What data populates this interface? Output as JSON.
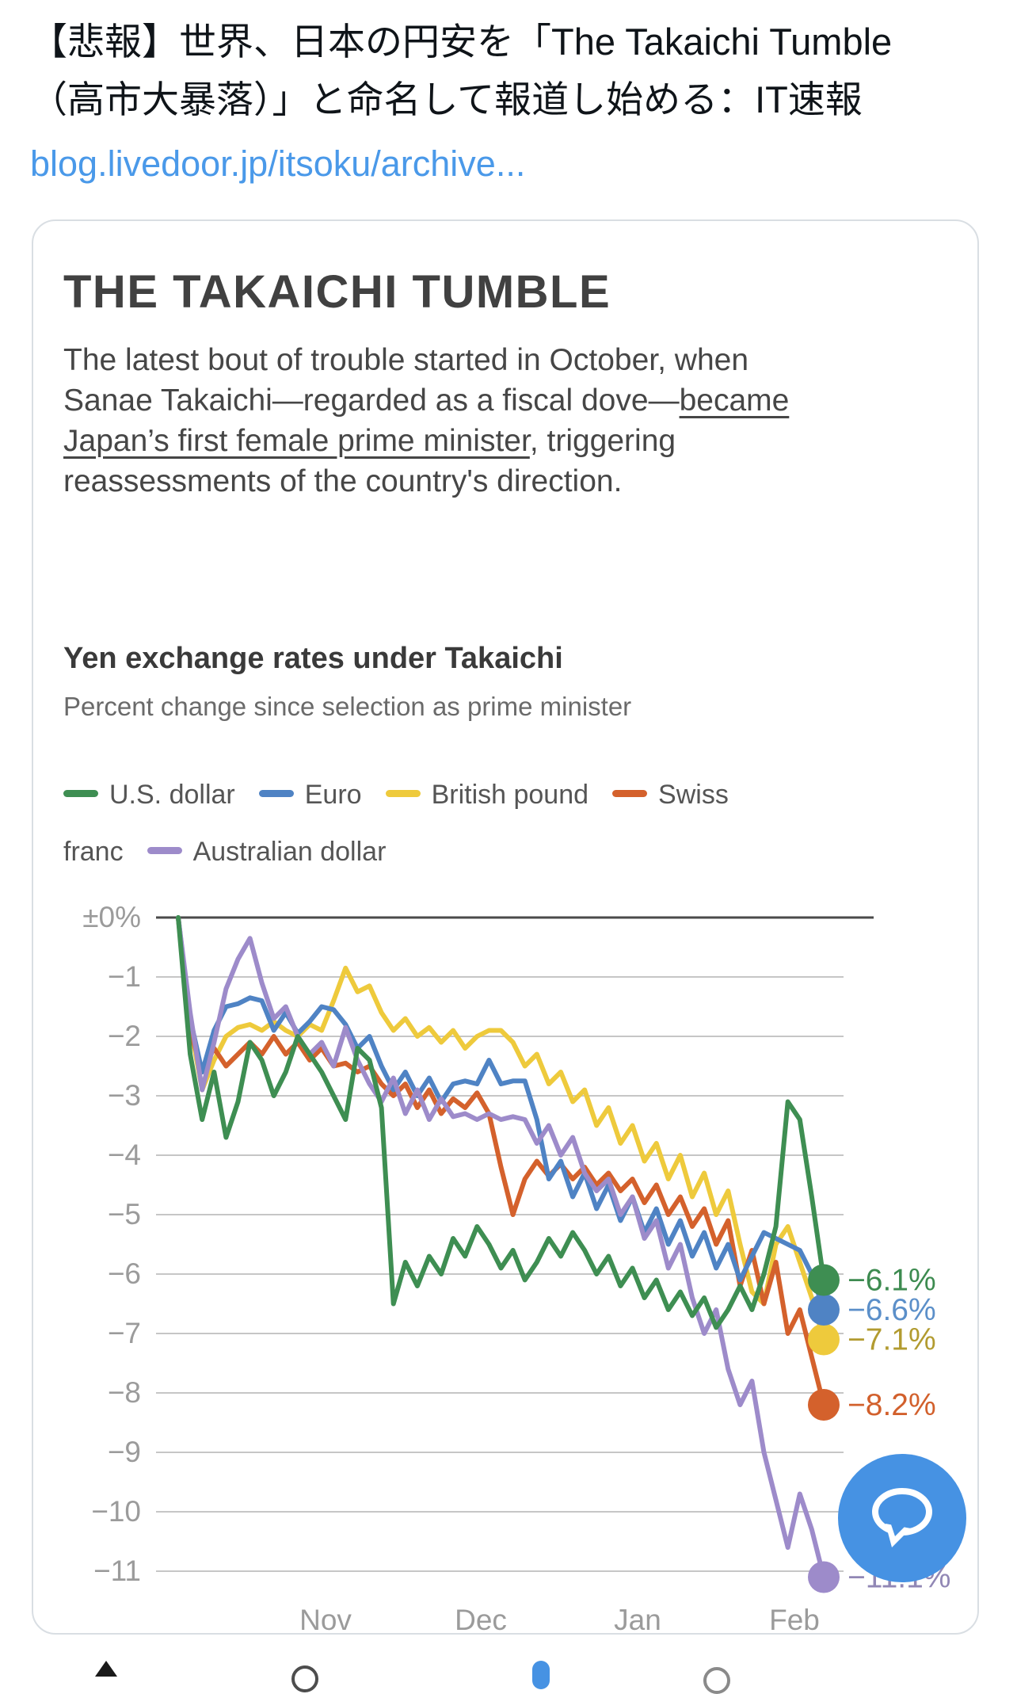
{
  "tweet": {
    "text_lines": [
      "【悲報】世界、日本の円安を「The Takaichi Tumble",
      "（高市大暴落）」と命名して報道し始める：IT速報"
    ],
    "link_text": "blog.livedoor.jp/itsoku/archive..."
  },
  "article": {
    "title": "THE TAKAICHI TUMBLE",
    "paragraph_lines": [
      [
        {
          "t": "The latest bout of trouble started in October, when"
        }
      ],
      [
        {
          "t": "Sanae Takaichi—regarded as a fiscal dove—"
        },
        {
          "t": "became",
          "u": true
        }
      ],
      [
        {
          "t": "Japan’s first female prime minister",
          "u": true
        },
        {
          "t": ", triggering"
        }
      ],
      [
        {
          "t": "reassessments of the country's direction."
        }
      ]
    ]
  },
  "chart_data": {
    "type": "line",
    "title": "Yen exchange rates under Takaichi",
    "subtitle": "Percent change since selection as prime minister",
    "unit": "percent change",
    "ylim": [
      -11.5,
      0.3
    ],
    "grid": true,
    "legend_position": "top",
    "x_axis_labels": [
      "Nov",
      "Dec",
      "Jan",
      "Feb"
    ],
    "y_ticks": [
      {
        "label": "±0%",
        "value": 0
      },
      {
        "label": "−1",
        "value": -1
      },
      {
        "label": "−2",
        "value": -2
      },
      {
        "label": "−3",
        "value": -3
      },
      {
        "label": "−4",
        "value": -4
      },
      {
        "label": "−5",
        "value": -5
      },
      {
        "label": "−6",
        "value": -6
      },
      {
        "label": "−7",
        "value": -7
      },
      {
        "label": "−8",
        "value": -8
      },
      {
        "label": "−9",
        "value": -9
      },
      {
        "label": "−10",
        "value": -10
      },
      {
        "label": "−11",
        "value": -11
      }
    ],
    "series": [
      {
        "name": "U.S. dollar",
        "color": "#3e8e52",
        "label_color": "#3d8b50",
        "end_label": "−6.1%",
        "final_value": -6.1,
        "values": [
          0,
          -2.3,
          -3.4,
          -2.6,
          -3.7,
          -3.1,
          -2.1,
          -2.4,
          -3.0,
          -2.6,
          -2.0,
          -2.3,
          -2.6,
          -3.0,
          -3.4,
          -2.2,
          -2.4,
          -3.2,
          -6.5,
          -5.8,
          -6.2,
          -5.7,
          -6.0,
          -5.4,
          -5.7,
          -5.2,
          -5.5,
          -5.9,
          -5.6,
          -6.1,
          -5.8,
          -5.4,
          -5.7,
          -5.3,
          -5.6,
          -6.0,
          -5.7,
          -6.2,
          -5.9,
          -6.4,
          -6.1,
          -6.6,
          -6.3,
          -6.7,
          -6.4,
          -6.9,
          -6.6,
          -6.2,
          -6.6,
          -6.0,
          -5.2,
          -3.1,
          -3.4,
          -4.7,
          -6.1
        ]
      },
      {
        "name": "Euro",
        "color": "#4f83c4",
        "label_color": "#5b8fc9",
        "end_label": "−6.6%",
        "final_value": -6.6,
        "values": [
          0,
          -1.7,
          -2.6,
          -1.9,
          -1.5,
          -1.45,
          -1.35,
          -1.4,
          -1.9,
          -1.6,
          -1.95,
          -1.75,
          -1.5,
          -1.55,
          -1.8,
          -2.2,
          -2.0,
          -2.5,
          -2.9,
          -2.6,
          -3.0,
          -2.7,
          -3.1,
          -2.8,
          -2.75,
          -2.8,
          -2.4,
          -2.8,
          -2.75,
          -2.75,
          -3.4,
          -4.4,
          -4.1,
          -4.7,
          -4.3,
          -4.9,
          -4.5,
          -5.1,
          -4.7,
          -5.3,
          -4.9,
          -5.5,
          -5.1,
          -5.7,
          -5.3,
          -5.9,
          -5.5,
          -6.1,
          -5.7,
          -5.3,
          -5.4,
          -5.5,
          -5.6,
          -6.0,
          -6.6
        ]
      },
      {
        "name": "British pound",
        "color": "#eeca3c",
        "label_color": "#b29b30",
        "end_label": "−7.1%",
        "final_value": -7.1,
        "values": [
          0,
          -1.8,
          -2.9,
          -2.4,
          -2.0,
          -1.85,
          -1.8,
          -1.9,
          -1.75,
          -1.9,
          -2.0,
          -1.8,
          -1.9,
          -1.4,
          -0.85,
          -1.25,
          -1.15,
          -1.6,
          -1.9,
          -1.7,
          -2.0,
          -1.85,
          -2.1,
          -1.9,
          -2.2,
          -2.0,
          -1.9,
          -1.9,
          -2.1,
          -2.5,
          -2.3,
          -2.8,
          -2.6,
          -3.1,
          -2.9,
          -3.5,
          -3.2,
          -3.8,
          -3.5,
          -4.1,
          -3.8,
          -4.4,
          -4.0,
          -4.7,
          -4.3,
          -5.0,
          -4.6,
          -5.5,
          -6.3,
          -6.5,
          -5.5,
          -5.2,
          -5.8,
          -6.4,
          -7.1
        ]
      },
      {
        "name": "Swiss franc",
        "color": "#d4612c",
        "label_color": "#d2602c",
        "end_label": "−8.2%",
        "final_value": -8.2,
        "values": [
          0,
          -1.9,
          -2.6,
          -2.2,
          -2.5,
          -2.3,
          -2.1,
          -2.3,
          -2.0,
          -2.3,
          -2.1,
          -2.4,
          -2.2,
          -2.5,
          -2.45,
          -2.6,
          -2.5,
          -2.8,
          -3.0,
          -2.8,
          -3.2,
          -2.9,
          -3.3,
          -3.05,
          -3.2,
          -2.95,
          -3.3,
          -4.2,
          -5.0,
          -4.4,
          -4.1,
          -4.35,
          -4.15,
          -4.4,
          -4.2,
          -4.5,
          -4.3,
          -4.6,
          -4.4,
          -4.8,
          -4.5,
          -5.0,
          -4.7,
          -5.2,
          -4.9,
          -5.5,
          -5.1,
          -6.2,
          -5.6,
          -6.5,
          -5.8,
          -7.0,
          -6.6,
          -7.4,
          -8.2
        ]
      },
      {
        "name": "Australian dollar",
        "color": "#9d8bca",
        "label_color": "#9187b5",
        "end_label": "−11.1%",
        "final_value": -11.1,
        "values": [
          0,
          -1.6,
          -2.9,
          -2.1,
          -1.2,
          -0.7,
          -0.35,
          -1.1,
          -1.7,
          -1.5,
          -2.0,
          -2.3,
          -2.1,
          -2.5,
          -1.85,
          -2.4,
          -2.8,
          -3.1,
          -2.7,
          -3.3,
          -2.9,
          -3.4,
          -3.05,
          -3.35,
          -3.3,
          -3.4,
          -3.3,
          -3.4,
          -3.35,
          -3.4,
          -3.8,
          -3.5,
          -4.0,
          -3.7,
          -4.3,
          -4.6,
          -4.4,
          -5.0,
          -4.7,
          -5.4,
          -5.1,
          -5.9,
          -5.5,
          -6.4,
          -7.0,
          -6.6,
          -7.6,
          -8.2,
          -7.8,
          -9.0,
          -9.8,
          -10.6,
          -9.7,
          -10.3,
          -11.1
        ]
      }
    ],
    "legend_rows": [
      [
        {
          "swatch": "#3e8e52",
          "text": "U.S. dollar"
        },
        {
          "swatch": "#4f83c4",
          "text": "Euro"
        },
        {
          "swatch": "#eeca3c",
          "text": "British pound"
        },
        {
          "swatch": "#d4612c",
          "text": "Swiss"
        }
      ],
      [
        {
          "text": "franc"
        },
        {
          "swatch": "#9d8bca",
          "text": "Australian dollar"
        }
      ]
    ]
  },
  "fab": {
    "icon": "chat-bubble-icon",
    "color": "#4692e3"
  },
  "bottom_bar": {
    "icons": [
      "share-icon",
      "status-circle-icon",
      "views-bar-icon",
      "status-circle-icon"
    ]
  }
}
